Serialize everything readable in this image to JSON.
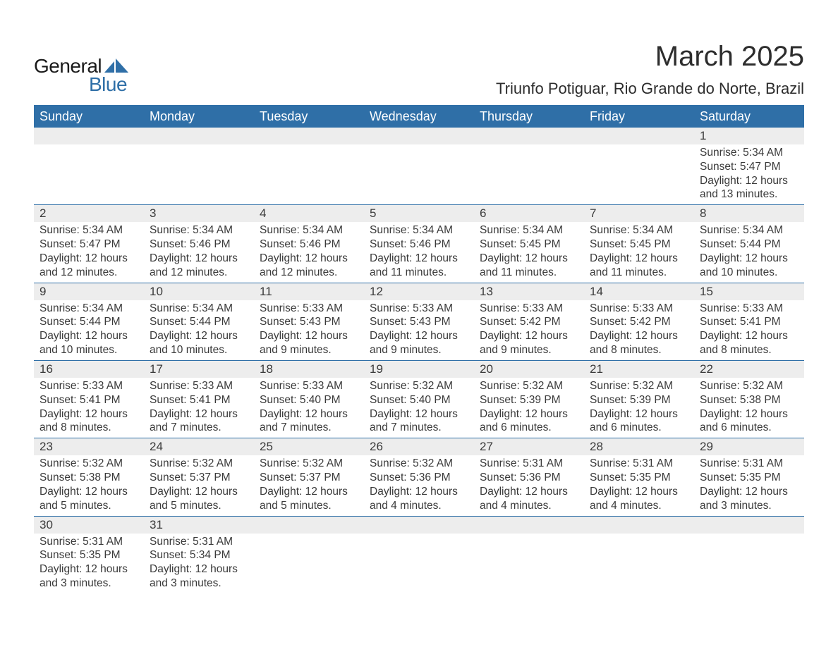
{
  "logo": {
    "text1": "General",
    "text2": "Blue",
    "shape_color": "#2f6fa7",
    "text1_color": "#1a1a1a"
  },
  "header": {
    "month_title": "March 2025",
    "location": "Triunfo Potiguar, Rio Grande do Norte, Brazil"
  },
  "colors": {
    "header_bg": "#2f6fa7",
    "header_fg": "#ffffff",
    "daynum_bg": "#ededed",
    "row_divider": "#2f6fa7",
    "text": "#3a3a3a",
    "page_bg": "#ffffff"
  },
  "day_headers": [
    "Sunday",
    "Monday",
    "Tuesday",
    "Wednesday",
    "Thursday",
    "Friday",
    "Saturday"
  ],
  "weeks": [
    {
      "nums": [
        "",
        "",
        "",
        "",
        "",
        "",
        "1"
      ],
      "details": [
        null,
        null,
        null,
        null,
        null,
        null,
        {
          "sunrise": "Sunrise: 5:34 AM",
          "sunset": "Sunset: 5:47 PM",
          "day1": "Daylight: 12 hours",
          "day2": "and 13 minutes."
        }
      ]
    },
    {
      "nums": [
        "2",
        "3",
        "4",
        "5",
        "6",
        "7",
        "8"
      ],
      "details": [
        {
          "sunrise": "Sunrise: 5:34 AM",
          "sunset": "Sunset: 5:47 PM",
          "day1": "Daylight: 12 hours",
          "day2": "and 12 minutes."
        },
        {
          "sunrise": "Sunrise: 5:34 AM",
          "sunset": "Sunset: 5:46 PM",
          "day1": "Daylight: 12 hours",
          "day2": "and 12 minutes."
        },
        {
          "sunrise": "Sunrise: 5:34 AM",
          "sunset": "Sunset: 5:46 PM",
          "day1": "Daylight: 12 hours",
          "day2": "and 12 minutes."
        },
        {
          "sunrise": "Sunrise: 5:34 AM",
          "sunset": "Sunset: 5:46 PM",
          "day1": "Daylight: 12 hours",
          "day2": "and 11 minutes."
        },
        {
          "sunrise": "Sunrise: 5:34 AM",
          "sunset": "Sunset: 5:45 PM",
          "day1": "Daylight: 12 hours",
          "day2": "and 11 minutes."
        },
        {
          "sunrise": "Sunrise: 5:34 AM",
          "sunset": "Sunset: 5:45 PM",
          "day1": "Daylight: 12 hours",
          "day2": "and 11 minutes."
        },
        {
          "sunrise": "Sunrise: 5:34 AM",
          "sunset": "Sunset: 5:44 PM",
          "day1": "Daylight: 12 hours",
          "day2": "and 10 minutes."
        }
      ]
    },
    {
      "nums": [
        "9",
        "10",
        "11",
        "12",
        "13",
        "14",
        "15"
      ],
      "details": [
        {
          "sunrise": "Sunrise: 5:34 AM",
          "sunset": "Sunset: 5:44 PM",
          "day1": "Daylight: 12 hours",
          "day2": "and 10 minutes."
        },
        {
          "sunrise": "Sunrise: 5:34 AM",
          "sunset": "Sunset: 5:44 PM",
          "day1": "Daylight: 12 hours",
          "day2": "and 10 minutes."
        },
        {
          "sunrise": "Sunrise: 5:33 AM",
          "sunset": "Sunset: 5:43 PM",
          "day1": "Daylight: 12 hours",
          "day2": "and 9 minutes."
        },
        {
          "sunrise": "Sunrise: 5:33 AM",
          "sunset": "Sunset: 5:43 PM",
          "day1": "Daylight: 12 hours",
          "day2": "and 9 minutes."
        },
        {
          "sunrise": "Sunrise: 5:33 AM",
          "sunset": "Sunset: 5:42 PM",
          "day1": "Daylight: 12 hours",
          "day2": "and 9 minutes."
        },
        {
          "sunrise": "Sunrise: 5:33 AM",
          "sunset": "Sunset: 5:42 PM",
          "day1": "Daylight: 12 hours",
          "day2": "and 8 minutes."
        },
        {
          "sunrise": "Sunrise: 5:33 AM",
          "sunset": "Sunset: 5:41 PM",
          "day1": "Daylight: 12 hours",
          "day2": "and 8 minutes."
        }
      ]
    },
    {
      "nums": [
        "16",
        "17",
        "18",
        "19",
        "20",
        "21",
        "22"
      ],
      "details": [
        {
          "sunrise": "Sunrise: 5:33 AM",
          "sunset": "Sunset: 5:41 PM",
          "day1": "Daylight: 12 hours",
          "day2": "and 8 minutes."
        },
        {
          "sunrise": "Sunrise: 5:33 AM",
          "sunset": "Sunset: 5:41 PM",
          "day1": "Daylight: 12 hours",
          "day2": "and 7 minutes."
        },
        {
          "sunrise": "Sunrise: 5:33 AM",
          "sunset": "Sunset: 5:40 PM",
          "day1": "Daylight: 12 hours",
          "day2": "and 7 minutes."
        },
        {
          "sunrise": "Sunrise: 5:32 AM",
          "sunset": "Sunset: 5:40 PM",
          "day1": "Daylight: 12 hours",
          "day2": "and 7 minutes."
        },
        {
          "sunrise": "Sunrise: 5:32 AM",
          "sunset": "Sunset: 5:39 PM",
          "day1": "Daylight: 12 hours",
          "day2": "and 6 minutes."
        },
        {
          "sunrise": "Sunrise: 5:32 AM",
          "sunset": "Sunset: 5:39 PM",
          "day1": "Daylight: 12 hours",
          "day2": "and 6 minutes."
        },
        {
          "sunrise": "Sunrise: 5:32 AM",
          "sunset": "Sunset: 5:38 PM",
          "day1": "Daylight: 12 hours",
          "day2": "and 6 minutes."
        }
      ]
    },
    {
      "nums": [
        "23",
        "24",
        "25",
        "26",
        "27",
        "28",
        "29"
      ],
      "details": [
        {
          "sunrise": "Sunrise: 5:32 AM",
          "sunset": "Sunset: 5:38 PM",
          "day1": "Daylight: 12 hours",
          "day2": "and 5 minutes."
        },
        {
          "sunrise": "Sunrise: 5:32 AM",
          "sunset": "Sunset: 5:37 PM",
          "day1": "Daylight: 12 hours",
          "day2": "and 5 minutes."
        },
        {
          "sunrise": "Sunrise: 5:32 AM",
          "sunset": "Sunset: 5:37 PM",
          "day1": "Daylight: 12 hours",
          "day2": "and 5 minutes."
        },
        {
          "sunrise": "Sunrise: 5:32 AM",
          "sunset": "Sunset: 5:36 PM",
          "day1": "Daylight: 12 hours",
          "day2": "and 4 minutes."
        },
        {
          "sunrise": "Sunrise: 5:31 AM",
          "sunset": "Sunset: 5:36 PM",
          "day1": "Daylight: 12 hours",
          "day2": "and 4 minutes."
        },
        {
          "sunrise": "Sunrise: 5:31 AM",
          "sunset": "Sunset: 5:35 PM",
          "day1": "Daylight: 12 hours",
          "day2": "and 4 minutes."
        },
        {
          "sunrise": "Sunrise: 5:31 AM",
          "sunset": "Sunset: 5:35 PM",
          "day1": "Daylight: 12 hours",
          "day2": "and 3 minutes."
        }
      ]
    },
    {
      "nums": [
        "30",
        "31",
        "",
        "",
        "",
        "",
        ""
      ],
      "details": [
        {
          "sunrise": "Sunrise: 5:31 AM",
          "sunset": "Sunset: 5:35 PM",
          "day1": "Daylight: 12 hours",
          "day2": "and 3 minutes."
        },
        {
          "sunrise": "Sunrise: 5:31 AM",
          "sunset": "Sunset: 5:34 PM",
          "day1": "Daylight: 12 hours",
          "day2": "and 3 minutes."
        },
        null,
        null,
        null,
        null,
        null
      ]
    }
  ]
}
